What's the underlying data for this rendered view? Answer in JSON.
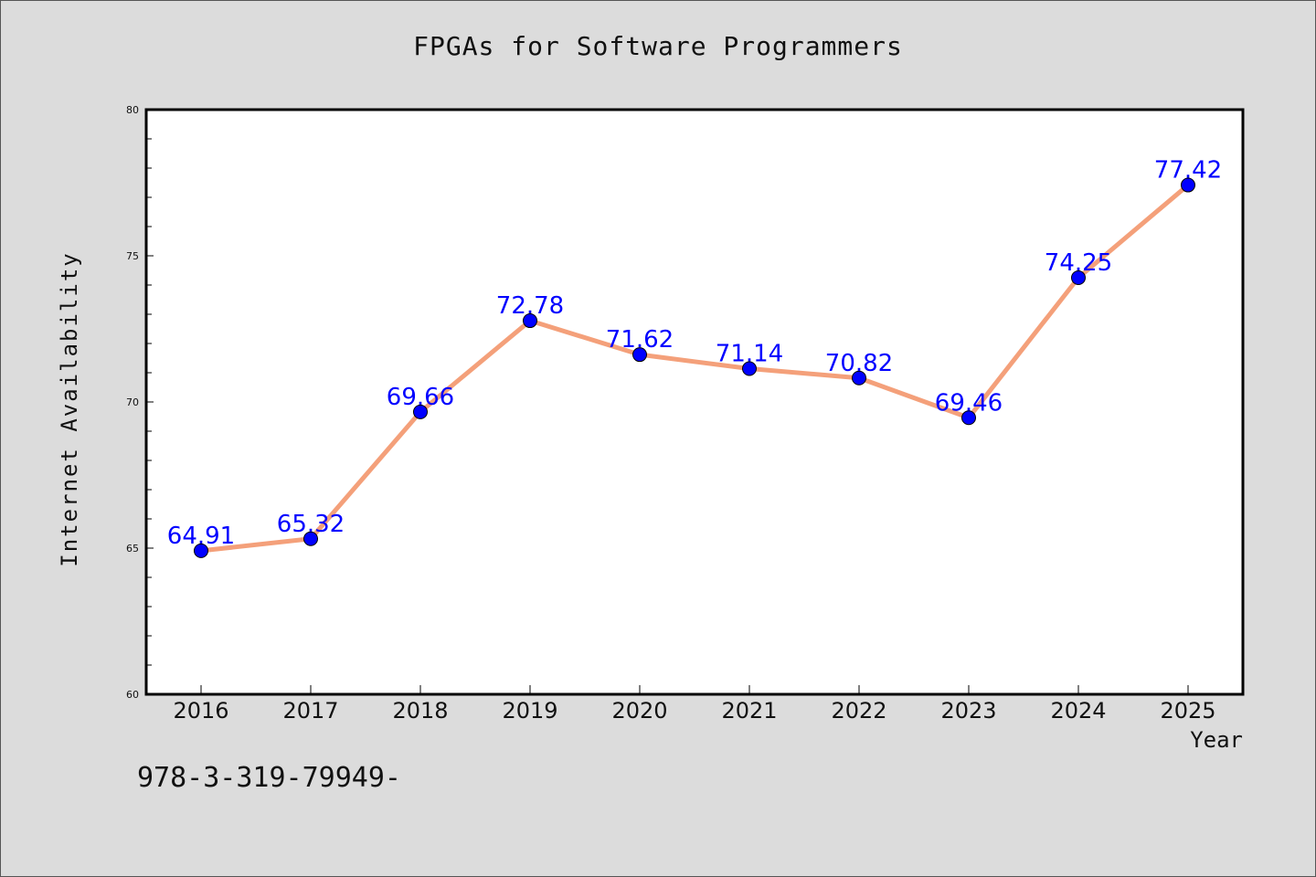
{
  "chart_data": {
    "type": "line",
    "title": "FPGAs for Software Programmers",
    "xlabel": "Year",
    "ylabel": "Internet Availability",
    "categories": [
      "2016",
      "2017",
      "2018",
      "2019",
      "2020",
      "2021",
      "2022",
      "2023",
      "2024",
      "2025"
    ],
    "series": [
      {
        "values": [
          64.91,
          65.32,
          69.66,
          72.78,
          71.62,
          71.14,
          70.82,
          69.46,
          74.25,
          77.42
        ]
      }
    ],
    "data_labels": [
      "64.91",
      "65.32",
      "69.66",
      "72.78",
      "71.62",
      "71.14",
      "70.82",
      "69.46",
      "74.25",
      "77.42"
    ],
    "ylim": [
      60,
      80
    ],
    "yticks": [
      "60",
      "65",
      "70",
      "75",
      "80"
    ],
    "grid": false,
    "legend": "none",
    "colors": {
      "line": "#f4a07a",
      "marker": "#0000ff",
      "data_label": "#0000ff",
      "background": "#dcdcdc",
      "plot_area": "#ffffff"
    }
  },
  "footer": {
    "code": "978-3-319-79949-"
  }
}
